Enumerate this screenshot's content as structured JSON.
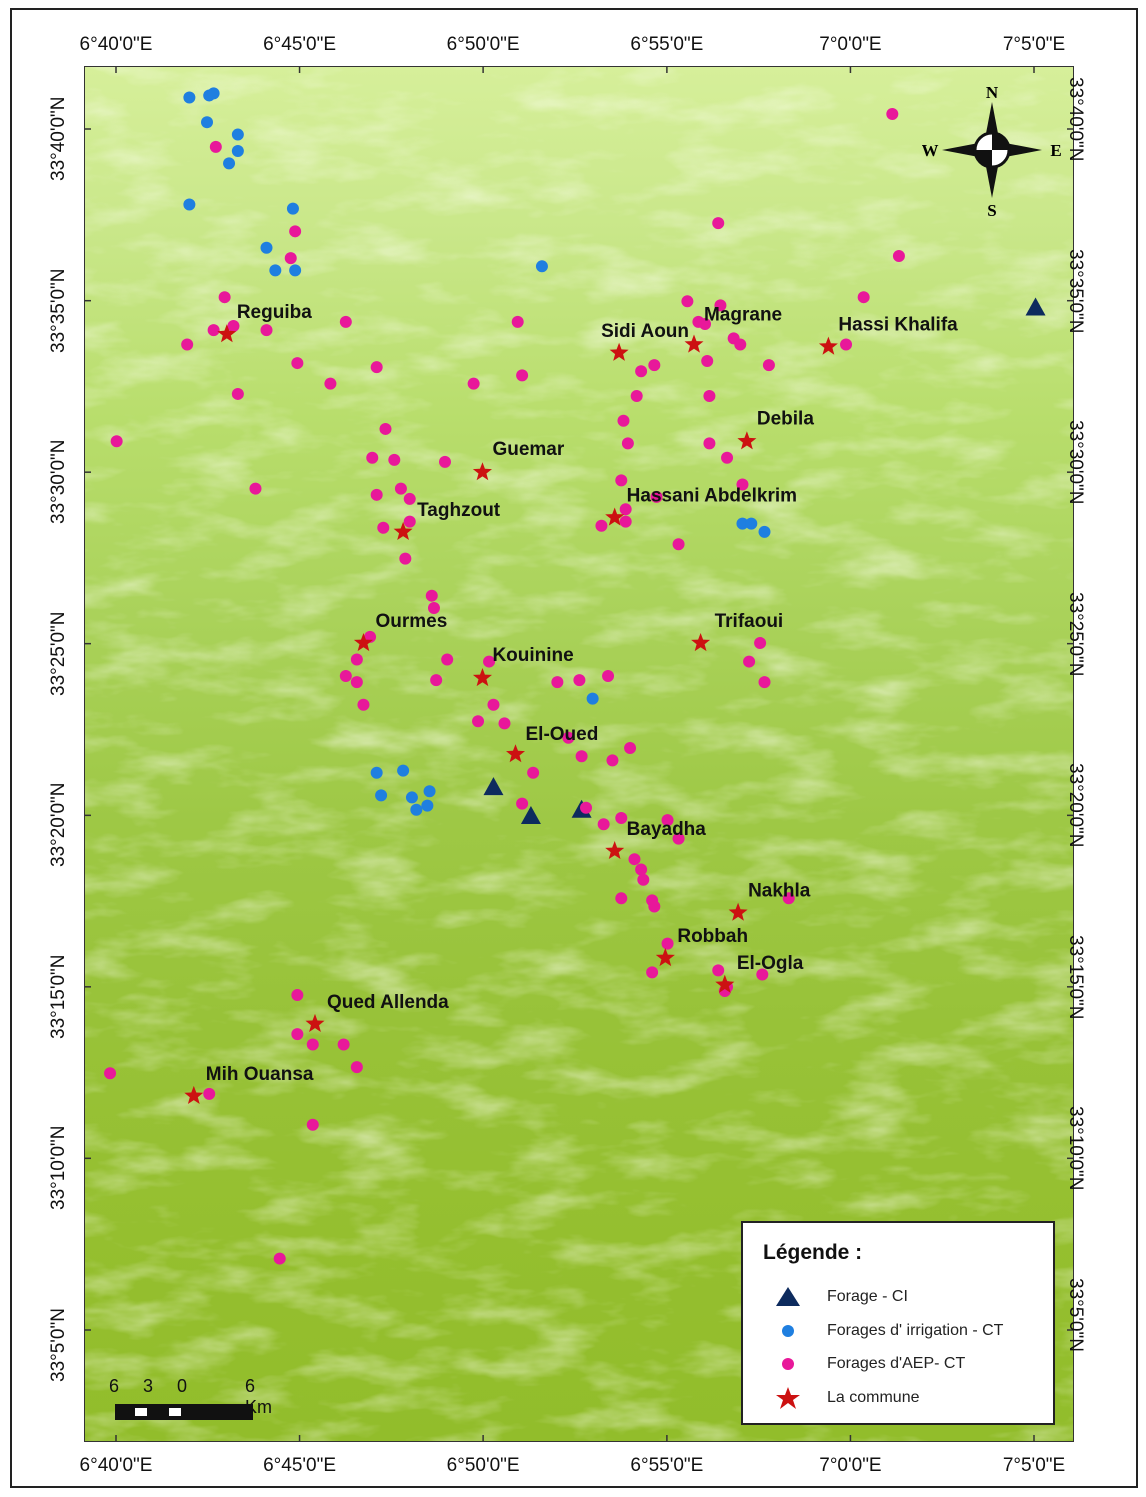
{
  "map": {
    "top_ticks": [
      "6°40'0\"E",
      "6°45'0\"E",
      "6°50'0\"E",
      "6°55'0\"E",
      "7°0'0\"E",
      "7°5'0\"E"
    ],
    "bottom_ticks": [
      "6°40'0\"E",
      "6°45'0\"E",
      "6°50'0\"E",
      "6°55'0\"E",
      "7°0'0\"E",
      "7°5'0\"E"
    ],
    "left_ticks": [
      "33°40'0\"N",
      "33°35'0\"N",
      "33°30'0\"N",
      "33°25'0\"N",
      "33°20'0\"N",
      "33°15'0\"N",
      "33°10'0\"N",
      "33°5'0\"N"
    ],
    "right_ticks": [
      "33°40'0\"N",
      "33°35'0\"N",
      "33°30'0\"N",
      "33°25'0\"N",
      "33°20'0\"N",
      "33°15'0\"N",
      "33°10'0\"N",
      "33°5'0\"N"
    ],
    "lon_ticks": [
      6.6667,
      6.75,
      6.8333,
      6.9167,
      7.0,
      7.0833
    ],
    "lat_ticks": [
      33.6667,
      33.5833,
      33.5,
      33.4167,
      33.3333,
      33.25,
      33.1667,
      33.0833
    ],
    "communes": [
      {
        "name": "Reguiba",
        "lon": 6.717,
        "lat": 33.567
      },
      {
        "name": "Sidi Aoun",
        "lon": 6.895,
        "lat": 33.558
      },
      {
        "name": "Magrane",
        "lon": 6.929,
        "lat": 33.562
      },
      {
        "name": "Hassi Khalifa",
        "lon": 6.99,
        "lat": 33.561
      },
      {
        "name": "Debila",
        "lon": 6.953,
        "lat": 33.515
      },
      {
        "name": "Guemar",
        "lon": 6.833,
        "lat": 33.5
      },
      {
        "name": "Hassani Abdelkrim",
        "lon": 6.893,
        "lat": 33.478
      },
      {
        "name": "Taghzout",
        "lon": 6.797,
        "lat": 33.471
      },
      {
        "name": "Ourmes",
        "lon": 6.779,
        "lat": 33.417
      },
      {
        "name": "Kouinine",
        "lon": 6.833,
        "lat": 33.4
      },
      {
        "name": "Trifaoui",
        "lon": 6.932,
        "lat": 33.417
      },
      {
        "name": "El-Oued",
        "lon": 6.848,
        "lat": 33.363
      },
      {
        "name": "Bayadha",
        "lon": 6.893,
        "lat": 33.316
      },
      {
        "name": "Nakhla",
        "lon": 6.949,
        "lat": 33.286
      },
      {
        "name": "Robbah",
        "lon": 6.916,
        "lat": 33.264
      },
      {
        "name": "El-Ogla",
        "lon": 6.943,
        "lat": 33.251
      },
      {
        "name": "Qued Allenda",
        "lon": 6.757,
        "lat": 33.232
      },
      {
        "name": "Mih Ouansa",
        "lon": 6.702,
        "lat": 33.197
      }
    ],
    "forage_ci": [
      {
        "lon": 7.084,
        "lat": 33.58
      },
      {
        "lon": 6.838,
        "lat": 33.347
      },
      {
        "lon": 6.855,
        "lat": 33.333
      },
      {
        "lon": 6.878,
        "lat": 33.336
      }
    ],
    "irrigation_ct": [
      {
        "lon": 6.7,
        "lat": 33.682
      },
      {
        "lon": 6.709,
        "lat": 33.683
      },
      {
        "lon": 6.711,
        "lat": 33.684
      },
      {
        "lon": 6.708,
        "lat": 33.67
      },
      {
        "lon": 6.722,
        "lat": 33.664
      },
      {
        "lon": 6.718,
        "lat": 33.65
      },
      {
        "lon": 6.722,
        "lat": 33.656
      },
      {
        "lon": 6.7,
        "lat": 33.63
      },
      {
        "lon": 6.747,
        "lat": 33.628
      },
      {
        "lon": 6.735,
        "lat": 33.609
      },
      {
        "lon": 6.739,
        "lat": 33.598
      },
      {
        "lon": 6.748,
        "lat": 33.598
      },
      {
        "lon": 6.86,
        "lat": 33.6
      },
      {
        "lon": 6.951,
        "lat": 33.475
      },
      {
        "lon": 6.955,
        "lat": 33.475
      },
      {
        "lon": 6.961,
        "lat": 33.471
      },
      {
        "lon": 6.883,
        "lat": 33.39
      },
      {
        "lon": 6.785,
        "lat": 33.354
      },
      {
        "lon": 6.797,
        "lat": 33.355
      },
      {
        "lon": 6.787,
        "lat": 33.343
      },
      {
        "lon": 6.801,
        "lat": 33.342
      },
      {
        "lon": 6.809,
        "lat": 33.345
      },
      {
        "lon": 6.803,
        "lat": 33.336
      },
      {
        "lon": 6.808,
        "lat": 33.338
      }
    ],
    "aep_ct": [
      {
        "lon": 6.712,
        "lat": 33.658
      },
      {
        "lon": 6.748,
        "lat": 33.617
      },
      {
        "lon": 6.746,
        "lat": 33.604
      },
      {
        "lon": 6.716,
        "lat": 33.585
      },
      {
        "lon": 6.711,
        "lat": 33.569
      },
      {
        "lon": 6.72,
        "lat": 33.571
      },
      {
        "lon": 6.699,
        "lat": 33.562
      },
      {
        "lon": 6.735,
        "lat": 33.569
      },
      {
        "lon": 6.771,
        "lat": 33.573
      },
      {
        "lon": 6.749,
        "lat": 33.553
      },
      {
        "lon": 6.764,
        "lat": 33.543
      },
      {
        "lon": 6.785,
        "lat": 33.551
      },
      {
        "lon": 6.722,
        "lat": 33.538
      },
      {
        "lon": 6.667,
        "lat": 33.515
      },
      {
        "lon": 6.73,
        "lat": 33.492
      },
      {
        "lon": 6.789,
        "lat": 33.521
      },
      {
        "lon": 6.783,
        "lat": 33.507
      },
      {
        "lon": 6.793,
        "lat": 33.506
      },
      {
        "lon": 6.816,
        "lat": 33.505
      },
      {
        "lon": 6.785,
        "lat": 33.489
      },
      {
        "lon": 6.796,
        "lat": 33.492
      },
      {
        "lon": 6.8,
        "lat": 33.487
      },
      {
        "lon": 6.8,
        "lat": 33.476
      },
      {
        "lon": 6.788,
        "lat": 33.473
      },
      {
        "lon": 6.798,
        "lat": 33.458
      },
      {
        "lon": 6.81,
        "lat": 33.44
      },
      {
        "lon": 6.811,
        "lat": 33.434
      },
      {
        "lon": 6.829,
        "lat": 33.543
      },
      {
        "lon": 6.849,
        "lat": 33.573
      },
      {
        "lon": 6.851,
        "lat": 33.547
      },
      {
        "lon": 6.782,
        "lat": 33.42
      },
      {
        "lon": 6.776,
        "lat": 33.409
      },
      {
        "lon": 6.817,
        "lat": 33.409
      },
      {
        "lon": 6.836,
        "lat": 33.408
      },
      {
        "lon": 6.771,
        "lat": 33.401
      },
      {
        "lon": 6.776,
        "lat": 33.398
      },
      {
        "lon": 6.812,
        "lat": 33.399
      },
      {
        "lon": 6.779,
        "lat": 33.387
      },
      {
        "lon": 6.831,
        "lat": 33.379
      },
      {
        "lon": 6.838,
        "lat": 33.387
      },
      {
        "lon": 6.843,
        "lat": 33.378
      },
      {
        "lon": 6.867,
        "lat": 33.398
      },
      {
        "lon": 6.877,
        "lat": 33.399
      },
      {
        "lon": 6.89,
        "lat": 33.401
      },
      {
        "lon": 6.872,
        "lat": 33.371
      },
      {
        "lon": 6.878,
        "lat": 33.362
      },
      {
        "lon": 6.892,
        "lat": 33.36
      },
      {
        "lon": 6.9,
        "lat": 33.366
      },
      {
        "lon": 6.856,
        "lat": 33.354
      },
      {
        "lon": 6.851,
        "lat": 33.339
      },
      {
        "lon": 6.88,
        "lat": 33.337
      },
      {
        "lon": 6.888,
        "lat": 33.329
      },
      {
        "lon": 6.896,
        "lat": 33.332
      },
      {
        "lon": 6.917,
        "lat": 33.331
      },
      {
        "lon": 6.922,
        "lat": 33.322
      },
      {
        "lon": 6.902,
        "lat": 33.312
      },
      {
        "lon": 6.905,
        "lat": 33.307
      },
      {
        "lon": 6.906,
        "lat": 33.302
      },
      {
        "lon": 6.896,
        "lat": 33.293
      },
      {
        "lon": 6.91,
        "lat": 33.292
      },
      {
        "lon": 6.911,
        "lat": 33.289
      },
      {
        "lon": 6.917,
        "lat": 33.271
      },
      {
        "lon": 6.91,
        "lat": 33.257
      },
      {
        "lon": 6.94,
        "lat": 33.258
      },
      {
        "lon": 6.944,
        "lat": 33.25
      },
      {
        "lon": 6.943,
        "lat": 33.248
      },
      {
        "lon": 6.96,
        "lat": 33.256
      },
      {
        "lon": 6.972,
        "lat": 33.293
      },
      {
        "lon": 6.959,
        "lat": 33.417
      },
      {
        "lon": 6.954,
        "lat": 33.408
      },
      {
        "lon": 6.961,
        "lat": 33.398
      },
      {
        "lon": 6.926,
        "lat": 33.583
      },
      {
        "lon": 6.931,
        "lat": 33.573
      },
      {
        "lon": 6.934,
        "lat": 33.572
      },
      {
        "lon": 6.941,
        "lat": 33.581
      },
      {
        "lon": 6.947,
        "lat": 33.565
      },
      {
        "lon": 6.95,
        "lat": 33.562
      },
      {
        "lon": 6.963,
        "lat": 33.552
      },
      {
        "lon": 6.935,
        "lat": 33.554
      },
      {
        "lon": 6.905,
        "lat": 33.549
      },
      {
        "lon": 6.911,
        "lat": 33.552
      },
      {
        "lon": 6.903,
        "lat": 33.537
      },
      {
        "lon": 6.897,
        "lat": 33.525
      },
      {
        "lon": 6.899,
        "lat": 33.514
      },
      {
        "lon": 6.936,
        "lat": 33.537
      },
      {
        "lon": 6.936,
        "lat": 33.514
      },
      {
        "lon": 6.944,
        "lat": 33.507
      },
      {
        "lon": 6.951,
        "lat": 33.494
      },
      {
        "lon": 6.896,
        "lat": 33.496
      },
      {
        "lon": 6.898,
        "lat": 33.482
      },
      {
        "lon": 6.898,
        "lat": 33.476
      },
      {
        "lon": 6.887,
        "lat": 33.474
      },
      {
        "lon": 6.912,
        "lat": 33.488
      },
      {
        "lon": 6.922,
        "lat": 33.465
      },
      {
        "lon": 6.94,
        "lat": 33.621
      },
      {
        "lon": 7.006,
        "lat": 33.585
      },
      {
        "lon": 6.998,
        "lat": 33.562
      },
      {
        "lon": 7.019,
        "lat": 33.674
      },
      {
        "lon": 7.022,
        "lat": 33.605
      },
      {
        "lon": 6.749,
        "lat": 33.246
      },
      {
        "lon": 6.749,
        "lat": 33.227
      },
      {
        "lon": 6.756,
        "lat": 33.222
      },
      {
        "lon": 6.77,
        "lat": 33.222
      },
      {
        "lon": 6.776,
        "lat": 33.211
      },
      {
        "lon": 6.664,
        "lat": 33.208
      },
      {
        "lon": 6.709,
        "lat": 33.198
      },
      {
        "lon": 6.756,
        "lat": 33.183
      },
      {
        "lon": 6.741,
        "lat": 33.118
      }
    ]
  },
  "north_arrow": {
    "n": "N",
    "s": "S",
    "e": "E",
    "w": "W"
  },
  "scale_bar": {
    "labels": [
      "6",
      "3",
      "0",
      "6 Km"
    ]
  },
  "legend": {
    "title": "Légende :",
    "items": [
      {
        "label": "Forage - CI",
        "symbol": "triangle",
        "color": "#0d2b5e"
      },
      {
        "label": "Forages d' irrigation - CT",
        "symbol": "circle",
        "color": "#1f7fe0"
      },
      {
        "label": "Forages d'AEP- CT",
        "symbol": "circle",
        "color": "#e8189a"
      },
      {
        "label": "La commune",
        "symbol": "star",
        "color": "#cc1111"
      }
    ]
  },
  "colors": {
    "triangle": "#0d2b5e",
    "irrigation": "#1f7fe0",
    "aep": "#e8189a",
    "star": "#cc1111"
  }
}
